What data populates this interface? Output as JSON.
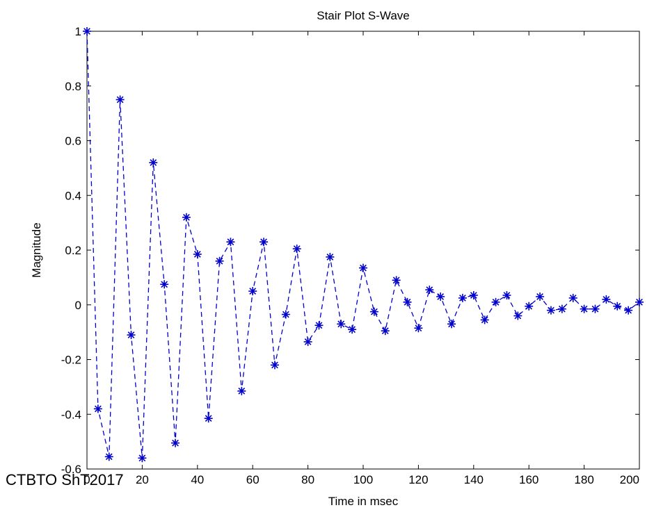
{
  "chart_data": {
    "type": "line",
    "title": "Stair Plot S-Wave",
    "xlabel": "Time in msec",
    "ylabel": "Magnitude",
    "xlim": [
      0,
      200
    ],
    "ylim": [
      -0.6,
      1
    ],
    "xticks": [
      "0",
      "20",
      "40",
      "60",
      "80",
      "100",
      "120",
      "140",
      "160",
      "180",
      "200"
    ],
    "yticks": [
      "-0.6",
      "-0.4",
      "-0.2",
      "0",
      "0.2",
      "0.4",
      "0.6",
      "0.8",
      "1"
    ],
    "grid": false,
    "series": [
      {
        "color": "#0000cc",
        "line_style": "dashed",
        "marker": "asterisk",
        "x": [
          0,
          4,
          8,
          12,
          16,
          20,
          24,
          28,
          32,
          36,
          40,
          44,
          48,
          52,
          56,
          60,
          64,
          68,
          72,
          76,
          80,
          84,
          88,
          92,
          96,
          100,
          104,
          108,
          112,
          116,
          120,
          124,
          128,
          132,
          136,
          140,
          144,
          148,
          152,
          156,
          160,
          164,
          168,
          172,
          176,
          180,
          184,
          188,
          192,
          196,
          200
        ],
        "y": [
          1.0,
          -0.38,
          -0.555,
          0.75,
          -0.11,
          -0.56,
          0.52,
          0.075,
          -0.505,
          0.32,
          0.185,
          -0.415,
          0.16,
          0.23,
          -0.315,
          0.05,
          0.23,
          -0.22,
          -0.035,
          0.205,
          -0.135,
          -0.075,
          0.175,
          -0.07,
          -0.09,
          0.135,
          -0.025,
          -0.095,
          0.09,
          0.01,
          -0.085,
          0.055,
          0.03,
          -0.07,
          0.025,
          0.035,
          -0.055,
          0.01,
          0.035,
          -0.04,
          -0.005,
          0.03,
          -0.02,
          -0.015,
          0.025,
          -0.015,
          -0.015,
          0.02,
          -0.005,
          -0.02,
          0.01
        ]
      }
    ]
  },
  "watermark": "CTBTO ShT2017"
}
